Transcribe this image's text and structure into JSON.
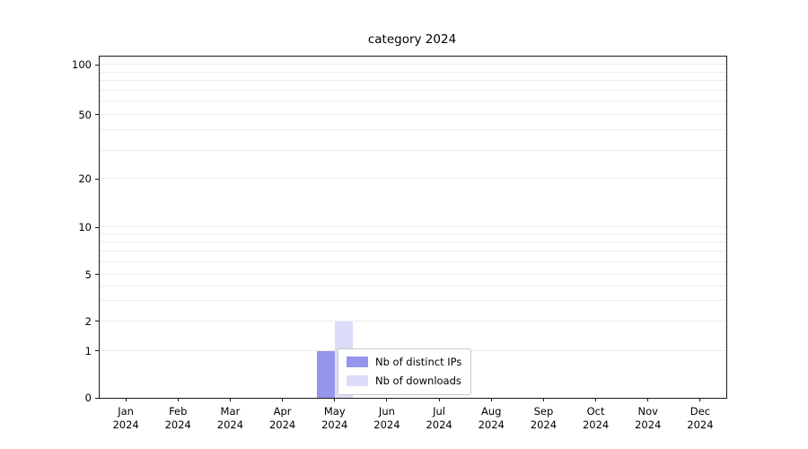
{
  "title": "category 2024",
  "legend": {
    "entries": [
      {
        "label": "Nb of distinct IPs",
        "color": "#9496ec"
      },
      {
        "label": "Nb of downloads",
        "color": "#dcdcf8"
      }
    ]
  },
  "chart_data": {
    "type": "bar",
    "title": "category 2024",
    "categories": [
      "Jan 2024",
      "Feb 2024",
      "Mar 2024",
      "Apr 2024",
      "May 2024",
      "Jun 2024",
      "Jul 2024",
      "Aug 2024",
      "Sep 2024",
      "Oct 2024",
      "Nov 2024",
      "Dec 2024"
    ],
    "series": [
      {
        "name": "Nb of distinct IPs",
        "color": "#9496ec",
        "values": [
          0,
          0,
          0,
          0,
          1,
          0,
          0,
          0,
          0,
          0,
          0,
          0
        ]
      },
      {
        "name": "Nb of downloads",
        "color": "#dcdcf8",
        "values": [
          0,
          0,
          0,
          0,
          2,
          0,
          0,
          0,
          0,
          0,
          0,
          0
        ]
      }
    ],
    "yticks": [
      0,
      1,
      2,
      5,
      10,
      20,
      50,
      100
    ],
    "minor_gridlines": [
      3,
      4,
      6,
      7,
      8,
      9,
      30,
      40,
      60,
      70,
      80,
      90
    ],
    "yscale": "symlog",
    "ylim": [
      0,
      110
    ],
    "xlabel": "",
    "ylabel": "",
    "grid": "horizontal",
    "legend_position": "lower-center-inside"
  }
}
